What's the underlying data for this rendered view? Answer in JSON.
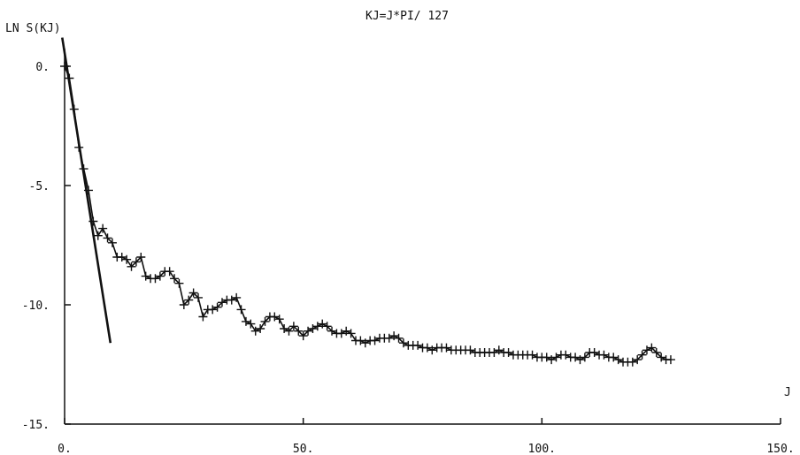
{
  "chart_data": {
    "type": "line",
    "title": "KJ=J*PI/ 127",
    "ylabel": "LN S(KJ)",
    "xlabel": "J",
    "xlim": [
      0,
      150
    ],
    "ylim": [
      -15,
      0
    ],
    "xticks": [
      "0.",
      "50.",
      "100.",
      "150."
    ],
    "yticks": [
      "0.",
      "-5.",
      "-10.",
      "-15."
    ],
    "xtick_values": [
      0,
      50,
      100,
      150
    ],
    "ytick_values": [
      0,
      -5,
      -10,
      -15
    ],
    "grid": false,
    "series": [
      {
        "marker": "plus",
        "x": [
          0,
          1,
          2,
          3,
          4,
          5,
          6,
          7,
          8,
          9,
          10,
          11,
          12,
          13,
          14,
          15,
          16,
          17,
          18,
          19,
          20,
          21,
          22,
          23,
          24,
          25,
          26,
          27,
          28,
          29,
          30,
          31,
          32,
          33,
          34,
          35,
          36,
          37,
          38,
          39,
          40,
          41,
          42,
          43,
          44,
          45,
          46,
          47,
          48,
          49,
          50,
          51,
          52,
          53,
          54,
          55,
          56,
          57,
          58,
          59,
          60,
          61,
          62,
          63,
          64,
          65,
          66,
          67,
          68,
          69,
          70,
          71,
          72,
          73,
          74,
          75,
          76,
          77,
          78,
          79,
          80,
          81,
          82,
          83,
          84,
          85,
          86,
          87,
          88,
          89,
          90,
          91,
          92,
          93,
          94,
          95,
          96,
          97,
          98,
          99,
          100,
          101,
          102,
          103,
          104,
          105,
          106,
          107,
          108,
          109,
          110,
          111,
          112,
          113,
          114,
          115,
          116,
          117,
          118,
          119,
          120,
          121,
          122,
          123,
          124,
          125,
          126,
          127
        ],
        "y": [
          0.0,
          -0.5,
          -1.8,
          -3.4,
          -4.3,
          -5.2,
          -6.5,
          -7.1,
          -6.8,
          -7.2,
          -7.4,
          -8.0,
          -8.0,
          -8.1,
          -8.4,
          -8.2,
          -8.0,
          -8.8,
          -8.9,
          -8.9,
          -8.8,
          -8.6,
          -8.6,
          -8.9,
          -9.1,
          -10.0,
          -9.8,
          -9.5,
          -9.7,
          -10.5,
          -10.2,
          -10.2,
          -10.1,
          -9.9,
          -9.8,
          -9.8,
          -9.7,
          -10.2,
          -10.7,
          -10.8,
          -11.1,
          -11.0,
          -10.7,
          -10.5,
          -10.5,
          -10.6,
          -11.0,
          -11.1,
          -10.9,
          -11.1,
          -11.3,
          -11.1,
          -11.0,
          -10.9,
          -10.8,
          -10.9,
          -11.1,
          -11.2,
          -11.2,
          -11.1,
          -11.2,
          -11.5,
          -11.5,
          -11.6,
          -11.5,
          -11.5,
          -11.4,
          -11.4,
          -11.4,
          -11.3,
          -11.4,
          -11.6,
          -11.7,
          -11.7,
          -11.7,
          -11.8,
          -11.8,
          -11.9,
          -11.8,
          -11.8,
          -11.8,
          -11.9,
          -11.9,
          -11.9,
          -11.9,
          -11.9,
          -12.0,
          -12.0,
          -12.0,
          -12.0,
          -12.0,
          -11.9,
          -12.0,
          -12.0,
          -12.1,
          -12.1,
          -12.1,
          -12.1,
          -12.1,
          -12.2,
          -12.2,
          -12.2,
          -12.3,
          -12.2,
          -12.1,
          -12.1,
          -12.2,
          -12.2,
          -12.3,
          -12.2,
          -12.0,
          -12.0,
          -12.1,
          -12.1,
          -12.2,
          -12.2,
          -12.3,
          -12.4,
          -12.4,
          -12.4,
          -12.3,
          -12.1,
          -11.9,
          -11.8,
          -12.0,
          -12.2,
          -12.3,
          -12.3
        ]
      },
      {
        "marker": "none",
        "x": [
          -0.5,
          9.6
        ],
        "y": [
          1.2,
          -11.6
        ]
      }
    ]
  }
}
